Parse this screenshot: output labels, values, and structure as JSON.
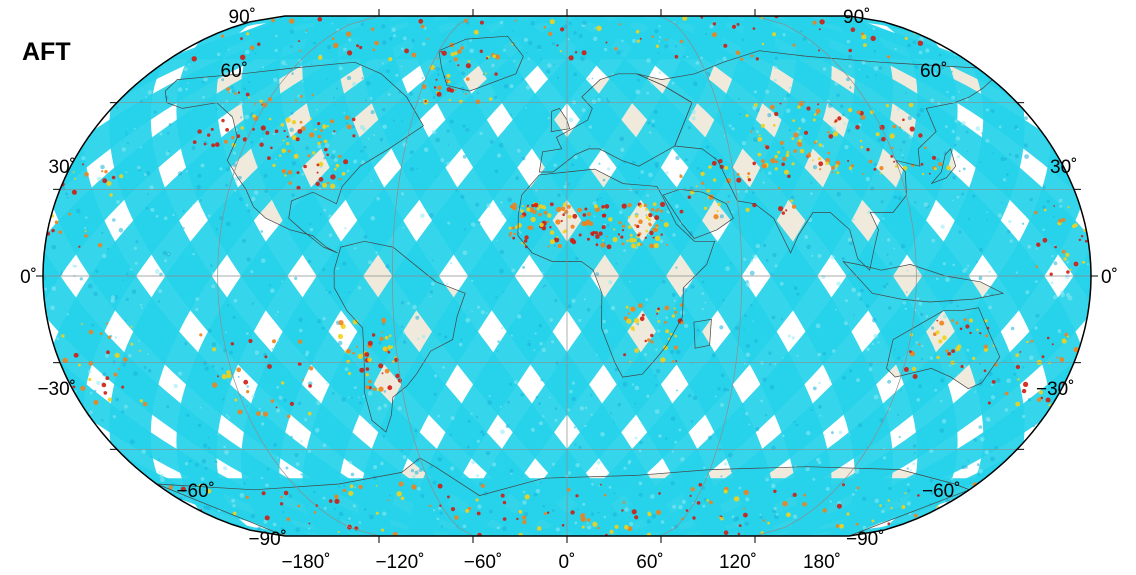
{
  "map": {
    "title": "AFT",
    "projection": "Winkel Tripel-like (rounded world)",
    "colors": {
      "swath": "#26d3ea",
      "swath_dark": "#1bb0d8",
      "swath_light": "#8eeaf3",
      "anomaly_yellow": "#f2d21b",
      "anomaly_orange": "#f0821c",
      "anomaly_red": "#cf1d12",
      "land": "#efeadb",
      "grid": "#8d8d8d",
      "coast": "#444444",
      "outline": "#000000"
    },
    "lat_labels_left": [
      "90˚",
      "60˚",
      "30˚",
      "0˚",
      "−30˚",
      "−60˚",
      "−90˚"
    ],
    "lat_labels_right": [
      "90˚",
      "60˚",
      "30˚",
      "0˚",
      "−30˚",
      "−60˚",
      "−90˚"
    ],
    "lon_labels": [
      "−180˚",
      "−120˚",
      "−60˚",
      "0˚",
      "60˚",
      "120˚",
      "180˚"
    ]
  }
}
